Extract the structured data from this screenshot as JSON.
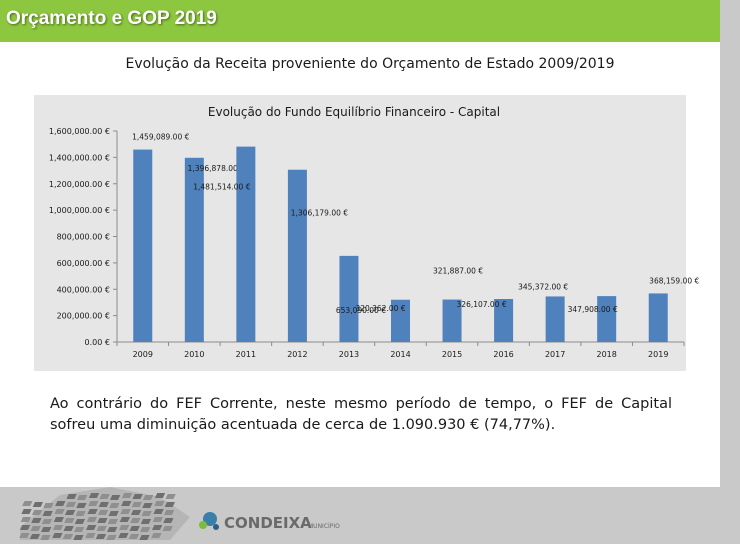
{
  "header": {
    "title": "Orçamento e GOP 2019"
  },
  "subtitle": "Evolução da Receita proveniente do Orçamento de Estado 2009/2019",
  "description": "Ao contrário do FEF Corrente, neste mesmo período de tempo, o FEF de Capital sofreu uma diminuição acentuada de cerca de 1.090.930 € (74,77%).",
  "footer": {
    "brand": "CONDEIXA",
    "brand_sub": "MUNICÍPIO"
  },
  "chart_data": {
    "type": "bar",
    "title": "Evolução do Fundo Equilíbrio Financeiro - Capital",
    "categories": [
      "2009",
      "2010",
      "2011",
      "2012",
      "2013",
      "2014",
      "2015",
      "2016",
      "2017",
      "2018",
      "2019"
    ],
    "values": [
      1459089,
      1396878,
      1481514,
      1306179,
      653090,
      320362,
      321887,
      326107,
      345372,
      347908,
      368159
    ],
    "data_labels": [
      "1,459,089.00 €",
      "1,396,878.00 €",
      "1,481,514.00 €",
      "1,306,179.00 €",
      "653,090.00 €",
      "320,362.00 €",
      "321,887.00 €",
      "326,107.00 €",
      "345,372.00 €",
      "347,908.00 €",
      "368,159.00 €"
    ],
    "ylim": [
      0,
      1600000
    ],
    "y_ticks": [
      0,
      200000,
      400000,
      600000,
      800000,
      1000000,
      1200000,
      1400000,
      1600000
    ],
    "y_tick_labels": [
      "0.00 €",
      "200,000.00 €",
      "400,000.00 €",
      "600,000.00 €",
      "800,000.00 €",
      "1,000,000.00 €",
      "1,200,000.00 €",
      "1,400,000.00 €",
      "1,600,000.00 €"
    ],
    "bar_color": "#4f81bd",
    "xlabel": "",
    "ylabel": ""
  }
}
